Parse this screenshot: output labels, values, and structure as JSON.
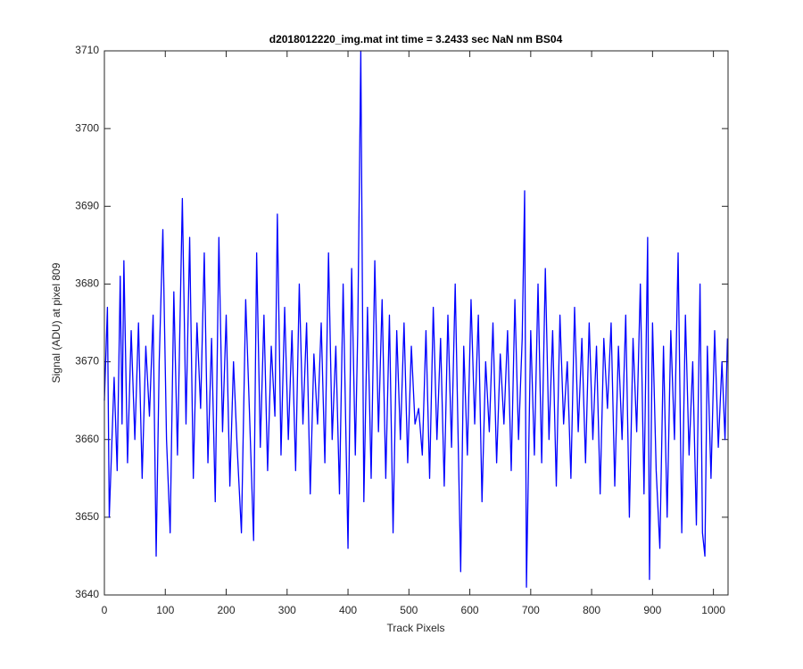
{
  "chart_data": {
    "type": "line",
    "title": "d2018012220_img.mat int time = 3.2433 sec  NaN nm BS04",
    "xlabel": "Track Pixels",
    "ylabel": "Signal (ADU) at pixel 809",
    "color": "#0000ff",
    "grid": false,
    "xlim": [
      0,
      1024
    ],
    "ylim": [
      3640,
      3710
    ],
    "xticks": [
      0,
      100,
      200,
      300,
      400,
      500,
      600,
      700,
      800,
      900,
      1000
    ],
    "yticks": [
      3640,
      3650,
      3660,
      3670,
      3680,
      3690,
      3700,
      3710
    ],
    "x": [
      0,
      5,
      8,
      16,
      21,
      26,
      29,
      32,
      38,
      44,
      50,
      56,
      62,
      68,
      74,
      80,
      85,
      90,
      96,
      102,
      108,
      114,
      120,
      128,
      134,
      140,
      146,
      152,
      158,
      164,
      170,
      176,
      182,
      188,
      194,
      200,
      206,
      212,
      218,
      225,
      232,
      238,
      245,
      250,
      256,
      262,
      268,
      274,
      280,
      284,
      290,
      296,
      302,
      308,
      314,
      320,
      326,
      332,
      338,
      344,
      350,
      356,
      362,
      368,
      374,
      380,
      386,
      392,
      400,
      406,
      412,
      416,
      421,
      426,
      432,
      438,
      444,
      450,
      456,
      462,
      468,
      474,
      480,
      486,
      492,
      498,
      504,
      510,
      516,
      522,
      528,
      534,
      540,
      546,
      552,
      558,
      564,
      570,
      576,
      585,
      590,
      596,
      602,
      608,
      614,
      620,
      626,
      632,
      638,
      644,
      650,
      656,
      662,
      668,
      674,
      680,
      686,
      690,
      693,
      700,
      706,
      712,
      718,
      724,
      730,
      736,
      742,
      748,
      754,
      760,
      766,
      772,
      778,
      784,
      790,
      796,
      802,
      808,
      814,
      820,
      826,
      832,
      838,
      844,
      850,
      856,
      862,
      868,
      874,
      880,
      886,
      892,
      895,
      900,
      906,
      912,
      918,
      924,
      930,
      936,
      942,
      948,
      954,
      960,
      966,
      972,
      978,
      982,
      986,
      990,
      996,
      1002,
      1008,
      1014,
      1019,
      1023
    ],
    "values": [
      3665,
      3677,
      3650,
      3668,
      3656,
      3681,
      3662,
      3683,
      3657,
      3674,
      3660,
      3675,
      3655,
      3672,
      3663,
      3676,
      3645,
      3670,
      3687,
      3660,
      3648,
      3679,
      3658,
      3691,
      3662,
      3686,
      3655,
      3675,
      3664,
      3684,
      3657,
      3673,
      3652,
      3686,
      3661,
      3676,
      3654,
      3670,
      3659,
      3648,
      3678,
      3664,
      3647,
      3684,
      3659,
      3676,
      3656,
      3672,
      3663,
      3689,
      3658,
      3677,
      3660,
      3674,
      3656,
      3680,
      3662,
      3675,
      3653,
      3671,
      3662,
      3675,
      3657,
      3684,
      3660,
      3672,
      3653,
      3680,
      3646,
      3682,
      3658,
      3674,
      3710,
      3652,
      3677,
      3655,
      3683,
      3661,
      3678,
      3655,
      3676,
      3648,
      3674,
      3660,
      3675,
      3657,
      3672,
      3662,
      3664,
      3658,
      3674,
      3655,
      3677,
      3660,
      3673,
      3654,
      3676,
      3659,
      3680,
      3643,
      3672,
      3658,
      3678,
      3662,
      3676,
      3652,
      3670,
      3661,
      3675,
      3657,
      3671,
      3662,
      3674,
      3656,
      3678,
      3660,
      3673,
      3692,
      3641,
      3674,
      3658,
      3680,
      3657,
      3682,
      3660,
      3674,
      3654,
      3676,
      3662,
      3670,
      3655,
      3677,
      3661,
      3673,
      3657,
      3675,
      3660,
      3672,
      3653,
      3673,
      3664,
      3675,
      3654,
      3672,
      3660,
      3676,
      3650,
      3673,
      3661,
      3680,
      3653,
      3686,
      3642,
      3675,
      3656,
      3646,
      3672,
      3650,
      3674,
      3660,
      3684,
      3648,
      3676,
      3658,
      3670,
      3649,
      3680,
      3648,
      3645,
      3672,
      3655,
      3674,
      3659,
      3670,
      3660,
      3673
    ]
  }
}
